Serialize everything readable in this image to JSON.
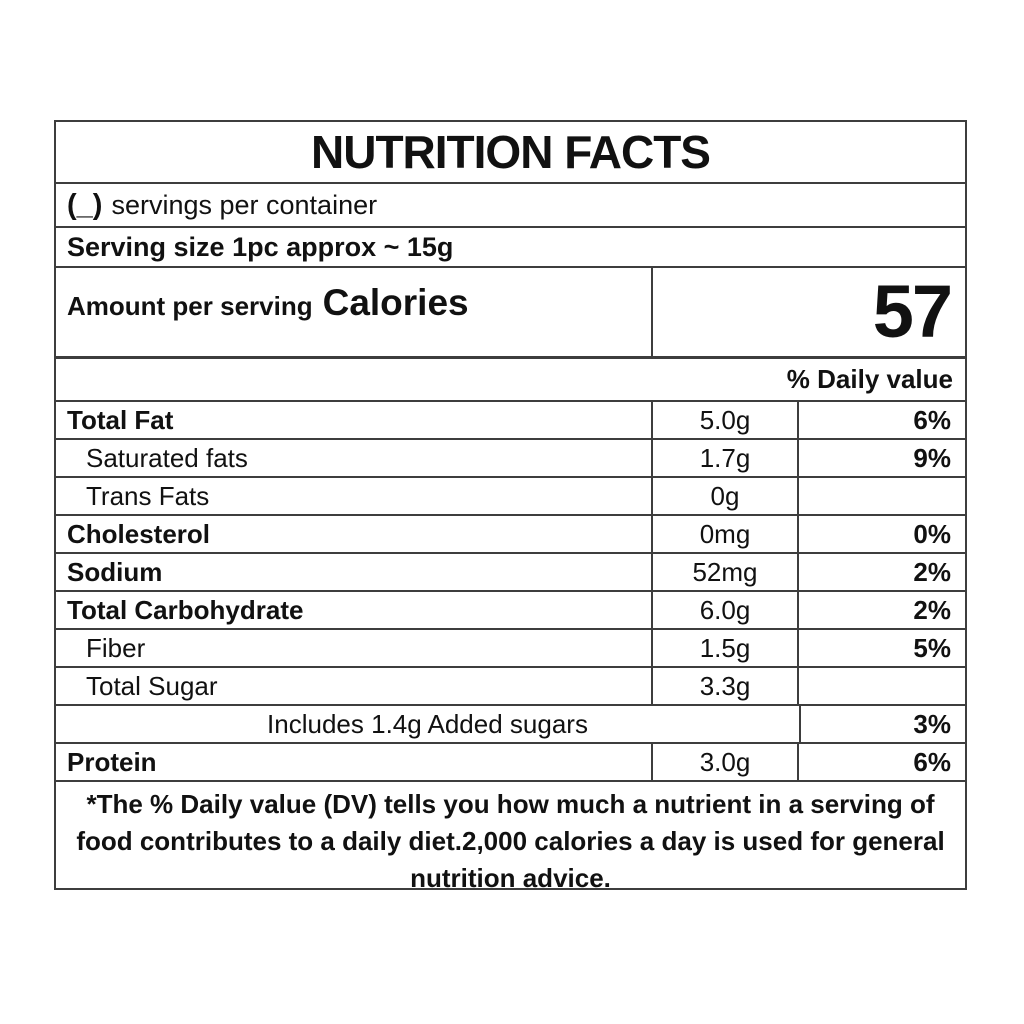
{
  "label": {
    "title": "NUTRITION FACTS",
    "servings": {
      "prefix": "(_)",
      "text": "servings per container"
    },
    "serving_size": "Serving size 1pc approx ~ 15g",
    "calories": {
      "amount_per_serving": "Amount per serving",
      "label": "Calories",
      "value": "57"
    },
    "daily_value_header": "% Daily value",
    "rows": [
      {
        "name": "Total Fat",
        "amount": "5.0g",
        "dv": "6%"
      },
      {
        "name": "Saturated fats",
        "amount": "1.7g",
        "dv": "9%"
      },
      {
        "name": "Trans Fats",
        "amount": "0g",
        "dv": ""
      },
      {
        "name": "Cholesterol",
        "amount": "0mg",
        "dv": "0%"
      },
      {
        "name": "Sodium",
        "amount": "52mg",
        "dv": "2%"
      },
      {
        "name": "Total Carbohydrate",
        "amount": "6.0g",
        "dv": "2%"
      },
      {
        "name": "Fiber",
        "amount": "1.5g",
        "dv": "5%"
      },
      {
        "name": "Total Sugar",
        "amount": "3.3g",
        "dv": ""
      },
      {
        "name": "Includes 1.4g Added sugars",
        "amount": "",
        "dv": "3%"
      },
      {
        "name": "Protein",
        "amount": "3.0g",
        "dv": "6%"
      }
    ],
    "footnote": "*The % Daily value (DV) tells you how much a nutrient in a serving of food contributes to a daily diet.2,000 calories a day is used for general nutrition advice.",
    "colors": {
      "text": "#111111",
      "border": "#3d3d3d",
      "background": "#ffffff"
    }
  }
}
